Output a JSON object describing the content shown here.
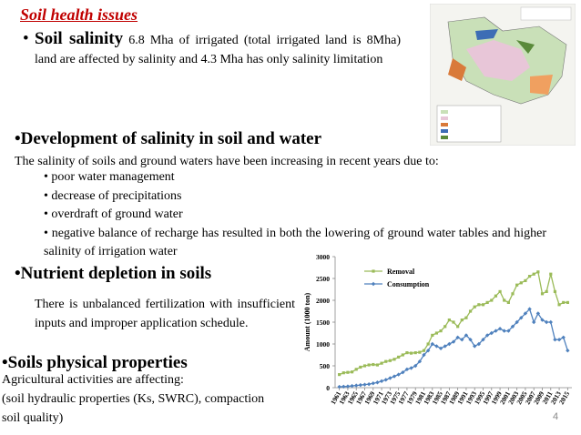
{
  "title": "Soil health issues",
  "salinity": {
    "heading": "Soil salinity",
    "text": "6.8 Mha of irrigated (total irrigated land is 8Mha) land are affected by salinity and 4.3 Mha has only salinity limitation"
  },
  "development": {
    "heading": "Development of salinity in soil and water",
    "intro": "The salinity of soils and ground waters have been increasing in recent years due to:",
    "items": [
      "poor water management",
      "decrease of precipitations",
      "overdraft of ground water",
      "negative balance of recharge has resulted in both the lowering of ground water tables and higher salinity of irrigation water"
    ]
  },
  "nutrient": {
    "heading": "Nutrient depletion in soils",
    "text": "There is unbalanced fertilization with insufficient inputs and improper application schedule."
  },
  "physical": {
    "heading": "Soils physical properties",
    "lines": [
      "Agricultural activities are affecting:",
      "(soil hydraulic properties (Ks, SWRC), compaction",
      "soil quality)"
    ]
  },
  "page_number": "4",
  "chart_data": {
    "type": "line",
    "y_label": "Amount (1000 ton)",
    "x": [
      1961,
      1962,
      1963,
      1964,
      1965,
      1966,
      1967,
      1968,
      1969,
      1970,
      1971,
      1972,
      1973,
      1974,
      1975,
      1976,
      1977,
      1978,
      1979,
      1980,
      1981,
      1982,
      1983,
      1984,
      1985,
      1986,
      1987,
      1988,
      1989,
      1990,
      1991,
      1992,
      1993,
      1994,
      1995,
      1996,
      1997,
      1998,
      1999,
      2000,
      2001,
      2002,
      2003,
      2004,
      2005,
      2006,
      2007,
      2008,
      2009,
      2010,
      2011,
      2012,
      2013,
      2014,
      2015
    ],
    "series": [
      {
        "name": "Removal",
        "color": "#9bbb59",
        "marker": "square",
        "values": [
          300,
          340,
          350,
          360,
          420,
          470,
          500,
          520,
          530,
          520,
          560,
          600,
          620,
          650,
          700,
          750,
          800,
          790,
          800,
          810,
          850,
          1000,
          1200,
          1250,
          1300,
          1400,
          1550,
          1500,
          1400,
          1550,
          1600,
          1750,
          1850,
          1900,
          1900,
          1950,
          2000,
          2100,
          2200,
          2000,
          1950,
          2150,
          2350,
          2400,
          2450,
          2550,
          2600,
          2650,
          2150,
          2200,
          2600,
          2200,
          1900,
          1950,
          1950
        ]
      },
      {
        "name": "Consumption",
        "color": "#4f81bd",
        "marker": "diamond",
        "values": [
          20,
          25,
          30,
          40,
          50,
          60,
          70,
          80,
          100,
          120,
          150,
          180,
          220,
          260,
          300,
          350,
          420,
          450,
          500,
          600,
          750,
          850,
          1000,
          950,
          900,
          950,
          1000,
          1050,
          1150,
          1100,
          1200,
          1100,
          950,
          1000,
          1100,
          1200,
          1250,
          1300,
          1350,
          1300,
          1300,
          1400,
          1500,
          1600,
          1700,
          1800,
          1500,
          1700,
          1550,
          1500,
          1500,
          1100,
          1100,
          1150,
          850
        ]
      }
    ],
    "xlim": [
      1960,
      2016
    ],
    "xticks": [
      1961,
      1963,
      1965,
      1967,
      1969,
      1971,
      1973,
      1975,
      1977,
      1979,
      1981,
      1983,
      1985,
      1987,
      1989,
      1991,
      1993,
      1995,
      1997,
      1999,
      2001,
      2003,
      2005,
      2007,
      2009,
      2011,
      2013,
      2015
    ],
    "ylim": [
      0,
      3000
    ],
    "yticks": [
      0,
      500,
      1000,
      1500,
      2000,
      2500,
      3000
    ],
    "grid": false
  }
}
